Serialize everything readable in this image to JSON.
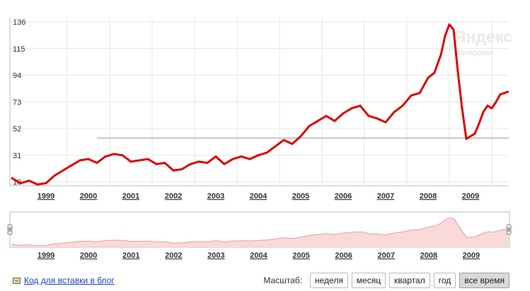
{
  "watermark": {
    "brand": "Яндекс",
    "sub": "котировки"
  },
  "colors": {
    "line": "#e00000",
    "area_fill": "#f9d9d9",
    "area_line": "#e4a0a0",
    "reference": "#c4c4c4"
  },
  "chart_data": {
    "type": "line",
    "title": "",
    "xlabel": "",
    "ylabel": "",
    "yticks": [
      10,
      31,
      52,
      73,
      94,
      115,
      136
    ],
    "ylim": [
      7,
      136
    ],
    "x_tick_labels": [
      "1999",
      "2000",
      "2001",
      "2002",
      "2003",
      "2004",
      "2005",
      "2006",
      "2007",
      "2008",
      "2009"
    ],
    "xlim": [
      1998.15,
      2009.9
    ],
    "reference_line": {
      "y": 44.5,
      "x_start": 2000.2,
      "x_end": 2009.9
    },
    "x": [
      1998.2,
      1998.4,
      1998.6,
      1998.8,
      1999.0,
      1999.2,
      1999.4,
      1999.6,
      1999.8,
      2000.0,
      2000.2,
      2000.4,
      2000.6,
      2000.8,
      2001.0,
      2001.2,
      2001.4,
      2001.6,
      2001.8,
      2002.0,
      2002.2,
      2002.4,
      2002.6,
      2002.8,
      2003.0,
      2003.2,
      2003.4,
      2003.6,
      2003.8,
      2004.0,
      2004.2,
      2004.4,
      2004.6,
      2004.8,
      2005.0,
      2005.2,
      2005.4,
      2005.6,
      2005.8,
      2006.0,
      2006.2,
      2006.4,
      2006.6,
      2006.8,
      2007.0,
      2007.2,
      2007.4,
      2007.6,
      2007.8,
      2008.0,
      2008.15,
      2008.3,
      2008.4,
      2008.5,
      2008.6,
      2008.7,
      2008.8,
      2008.9,
      2009.0,
      2009.1,
      2009.2,
      2009.3,
      2009.4,
      2009.5,
      2009.6,
      2009.7,
      2009.8,
      2009.88
    ],
    "series": [
      {
        "values": [
          13,
          9,
          11,
          8,
          9,
          15,
          19,
          23,
          27,
          28,
          25,
          30,
          32,
          31,
          26,
          27,
          28,
          24,
          25,
          19,
          20,
          24,
          26,
          25,
          30,
          24,
          28,
          30,
          28,
          31,
          33,
          38,
          43,
          40,
          46,
          54,
          58,
          62,
          58,
          64,
          68,
          70,
          62,
          60,
          57,
          65,
          70,
          78,
          80,
          92,
          96,
          110,
          125,
          134,
          130,
          97,
          68,
          44,
          46,
          48,
          56,
          65,
          70,
          68,
          73,
          79,
          80,
          81
        ]
      }
    ]
  },
  "navigator": {
    "x_tick_labels": [
      "1999",
      "2000",
      "2001",
      "2002",
      "2003",
      "2004",
      "2005",
      "2006",
      "2007",
      "2008",
      "2009"
    ]
  },
  "footer": {
    "embed_link": "Код для вставки в блог",
    "scale_label": "Масштаб:",
    "buttons": [
      {
        "label": "неделя",
        "active": false
      },
      {
        "label": "месяц",
        "active": false
      },
      {
        "label": "квартал",
        "active": false
      },
      {
        "label": "год",
        "active": false
      },
      {
        "label": "все время",
        "active": true
      }
    ]
  }
}
